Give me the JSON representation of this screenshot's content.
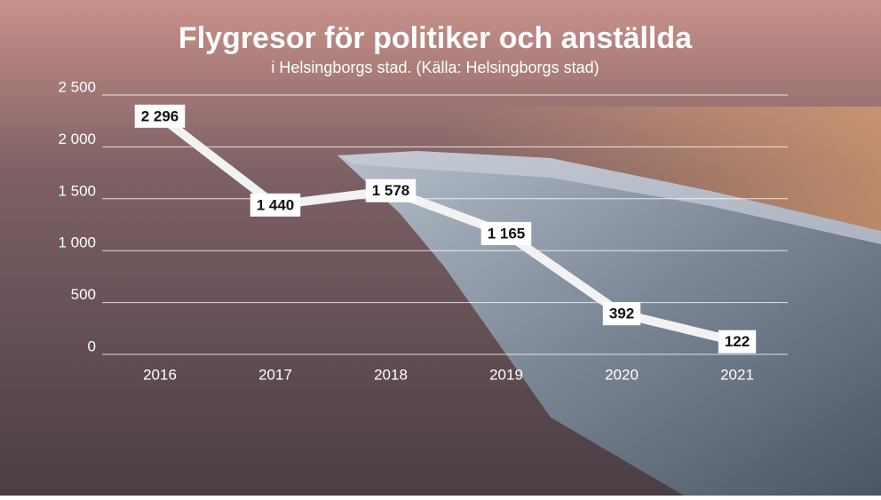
{
  "chart_data": {
    "type": "line",
    "title": "Flygresor för politiker och anställda",
    "subtitle": "i Helsingborgs stad. (Källa: Helsingborgs stad)",
    "categories": [
      "2016",
      "2017",
      "2018",
      "2019",
      "2020",
      "2021"
    ],
    "series": [
      {
        "name": "Flygresor",
        "color": "#f2f2f2",
        "values": [
          2296,
          1440,
          1578,
          1165,
          392,
          122
        ],
        "value_labels": [
          "2 296",
          "1 440",
          "1 578",
          "1 165",
          "392",
          "122"
        ]
      }
    ],
    "ylim": [
      0,
      2500
    ],
    "yticks": [
      0,
      500,
      {
        "value": 1000,
        "label": "1 000"
      },
      {
        "value": 1500,
        "label": "1 500"
      },
      {
        "value": 2000,
        "label": "2 000"
      },
      {
        "value": 2500,
        "label": "2 500"
      }
    ],
    "grid": true
  }
}
